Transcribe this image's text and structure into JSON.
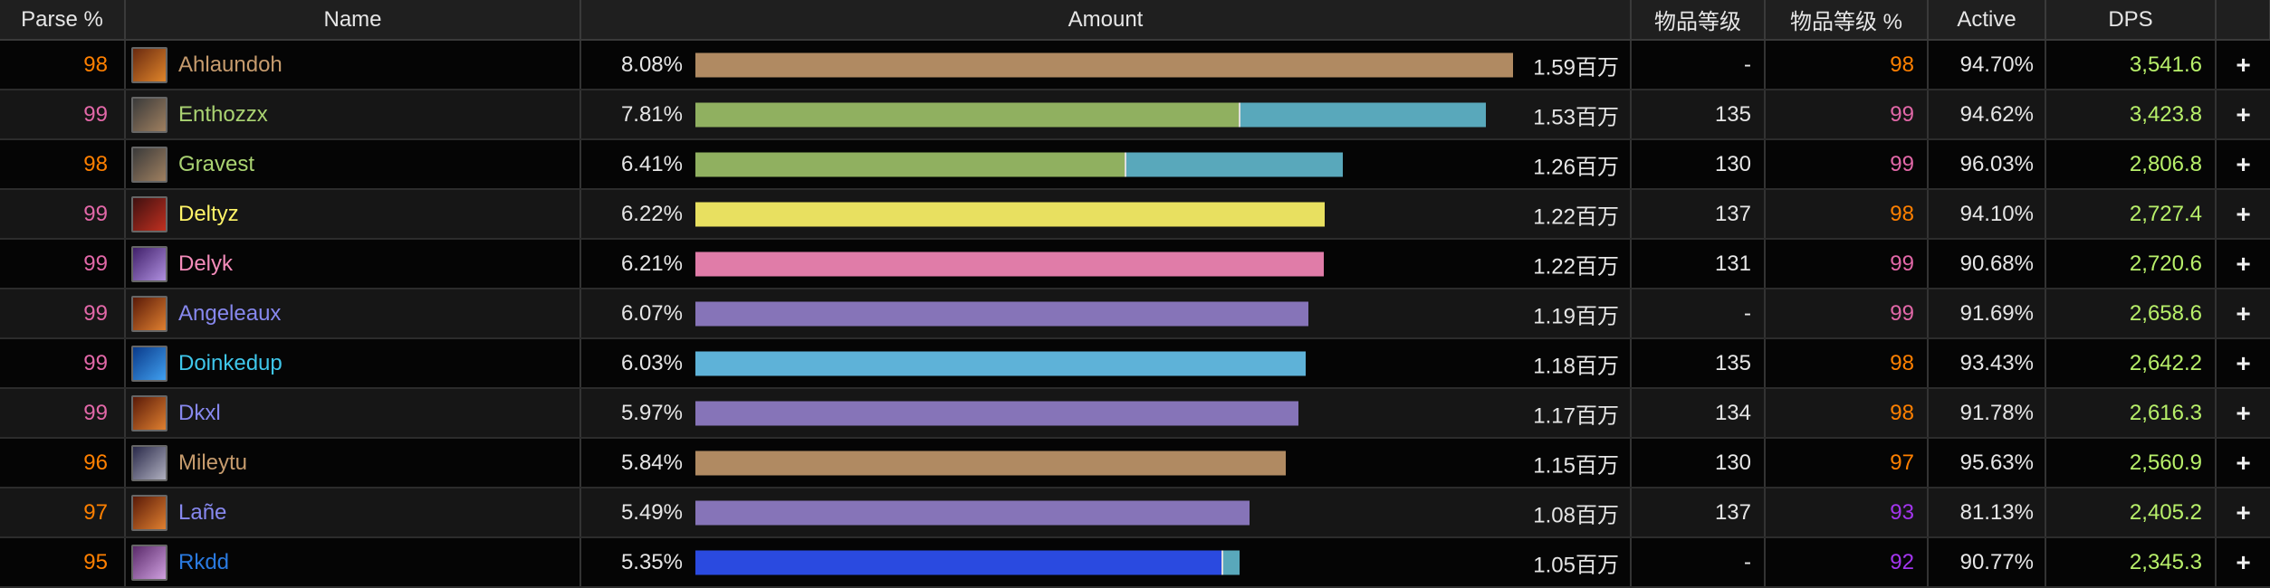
{
  "headers": {
    "parse": "Parse %",
    "name": "Name",
    "amount": "Amount",
    "ilvl": "物品等级",
    "ilvl_pct": "物品等级 %",
    "active": "Active",
    "dps": "DPS"
  },
  "plus_label": "+",
  "rows": [
    {
      "parse": "98",
      "parse_color": "#ff8000",
      "name": "Ahlaundoh",
      "name_color": "#c69b6d",
      "icon": "warrior-class-icon",
      "icon_bg": "#6a2a10,#e0852a",
      "pct": "8.08%",
      "bar": [
        [
          1.0,
          "#b08a62"
        ]
      ],
      "amount": "1.59百万",
      "ilvl": "-",
      "ilvl_pct": "98",
      "ilvl_pct_color": "#ff8000",
      "active": "94.70%",
      "dps": "3,541.6"
    },
    {
      "parse": "99",
      "parse_color": "#e268a8",
      "name": "Enthozzx",
      "name_color": "#aad372",
      "icon": "hunter-class-icon",
      "icon_bg": "#3a3a3a,#a08060",
      "pct": "7.81%",
      "bar": [
        [
          0.665,
          "#90b060"
        ],
        [
          0.3,
          "#59a8bb"
        ]
      ],
      "amount": "1.53百万",
      "ilvl": "135",
      "ilvl_pct": "99",
      "ilvl_pct_color": "#e268a8",
      "active": "94.62%",
      "dps": "3,423.8"
    },
    {
      "parse": "98",
      "parse_color": "#ff8000",
      "name": "Gravest",
      "name_color": "#aad372",
      "icon": "hunter-class-icon",
      "icon_bg": "#3a3a3a,#a08060",
      "pct": "6.41%",
      "bar": [
        [
          0.525,
          "#90b060"
        ],
        [
          0.265,
          "#59a8bb"
        ]
      ],
      "amount": "1.26百万",
      "ilvl": "130",
      "ilvl_pct": "99",
      "ilvl_pct_color": "#e268a8",
      "active": "96.03%",
      "dps": "2,806.8"
    },
    {
      "parse": "99",
      "parse_color": "#e268a8",
      "name": "Deltyz",
      "name_color": "#fff468",
      "icon": "rogue-class-icon",
      "icon_bg": "#401010,#c03020",
      "pct": "6.22%",
      "bar": [
        [
          0.77,
          "#e8e060"
        ]
      ],
      "amount": "1.22百万",
      "ilvl": "137",
      "ilvl_pct": "98",
      "ilvl_pct_color": "#ff8000",
      "active": "94.10%",
      "dps": "2,727.4"
    },
    {
      "parse": "99",
      "parse_color": "#e268a8",
      "name": "Delyk",
      "name_color": "#f48cba",
      "icon": "paladin-class-icon",
      "icon_bg": "#40206a,#b090e0",
      "pct": "6.21%",
      "bar": [
        [
          0.768,
          "#e07ca8"
        ]
      ],
      "amount": "1.22百万",
      "ilvl": "131",
      "ilvl_pct": "99",
      "ilvl_pct_color": "#e268a8",
      "active": "90.68%",
      "dps": "2,720.6"
    },
    {
      "parse": "99",
      "parse_color": "#e268a8",
      "name": "Angeleaux",
      "name_color": "#8788ee",
      "icon": "warlock-class-icon",
      "icon_bg": "#5a1a08,#e08030",
      "pct": "6.07%",
      "bar": [
        [
          0.75,
          "#8674b8"
        ]
      ],
      "amount": "1.19百万",
      "ilvl": "-",
      "ilvl_pct": "99",
      "ilvl_pct_color": "#e268a8",
      "active": "91.69%",
      "dps": "2,658.6"
    },
    {
      "parse": "99",
      "parse_color": "#e268a8",
      "name": "Doinkedup",
      "name_color": "#3fc7eb",
      "icon": "mage-class-icon",
      "icon_bg": "#0a3a8a,#40a0f0",
      "pct": "6.03%",
      "bar": [
        [
          0.746,
          "#5eb2d8"
        ]
      ],
      "amount": "1.18百万",
      "ilvl": "135",
      "ilvl_pct": "98",
      "ilvl_pct_color": "#ff8000",
      "active": "93.43%",
      "dps": "2,642.2"
    },
    {
      "parse": "99",
      "parse_color": "#e268a8",
      "name": "Dkxl",
      "name_color": "#8788ee",
      "icon": "warlock-class-icon",
      "icon_bg": "#5a1a08,#e08030",
      "pct": "5.97%",
      "bar": [
        [
          0.738,
          "#8674b8"
        ]
      ],
      "amount": "1.17百万",
      "ilvl": "134",
      "ilvl_pct": "98",
      "ilvl_pct_color": "#ff8000",
      "active": "91.78%",
      "dps": "2,616.3"
    },
    {
      "parse": "96",
      "parse_color": "#ff8000",
      "name": "Mileytu",
      "name_color": "#c69b6d",
      "icon": "warrior-class-icon",
      "icon_bg": "#2a2a4a,#b0b0c0",
      "pct": "5.84%",
      "bar": [
        [
          0.722,
          "#b08a62"
        ]
      ],
      "amount": "1.15百万",
      "ilvl": "130",
      "ilvl_pct": "97",
      "ilvl_pct_color": "#ff8000",
      "active": "95.63%",
      "dps": "2,560.9"
    },
    {
      "parse": "97",
      "parse_color": "#ff8000",
      "name": "Lañe",
      "name_color": "#8788ee",
      "icon": "warlock-class-icon",
      "icon_bg": "#5a1a08,#e08030",
      "pct": "5.49%",
      "bar": [
        [
          0.678,
          "#8674b8"
        ]
      ],
      "amount": "1.08百万",
      "ilvl": "137",
      "ilvl_pct": "93",
      "ilvl_pct_color": "#a335ee",
      "active": "81.13%",
      "dps": "2,405.2"
    },
    {
      "parse": "95",
      "parse_color": "#ff8000",
      "name": "Rkdd",
      "name_color": "#2a7ae0",
      "icon": "shaman-class-icon",
      "icon_bg": "#5a2a6a,#d0a0e0",
      "pct": "5.35%",
      "bar": [
        [
          0.643,
          "#2a4ae0"
        ],
        [
          0.02,
          "#59a8bb"
        ]
      ],
      "amount": "1.05百万",
      "ilvl": "-",
      "ilvl_pct": "92",
      "ilvl_pct_color": "#a335ee",
      "active": "90.77%",
      "dps": "2,345.3"
    }
  ]
}
